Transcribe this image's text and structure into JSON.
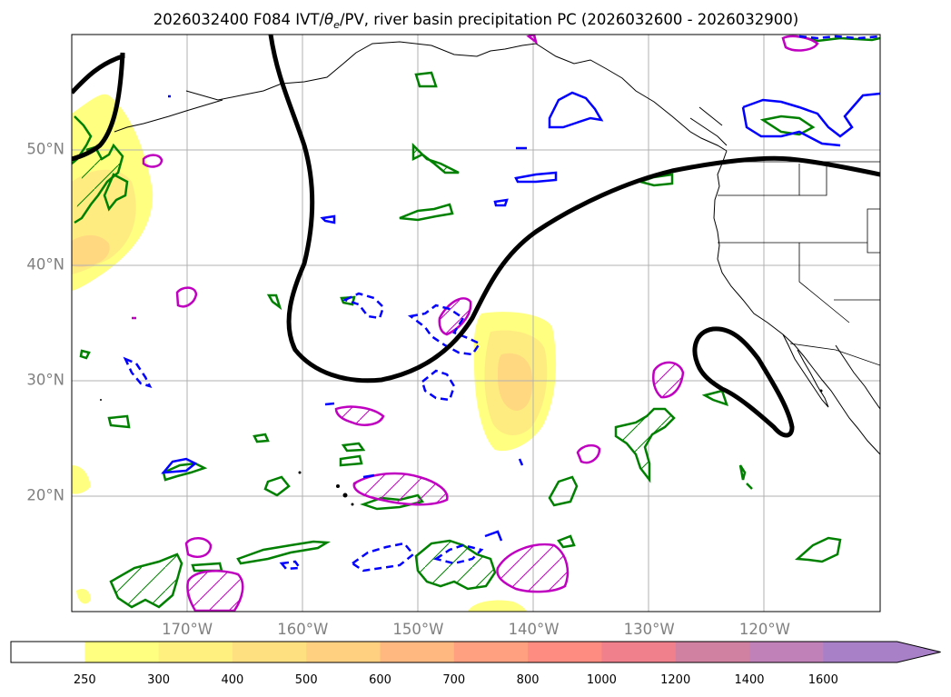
{
  "chart_data": {
    "type": "map",
    "title": "2026032400 F084 IVT/θe/PV, river basin precipitation PC (2026032600 - 2026032900)",
    "title_parts": {
      "prefix": "2026032400 F084 IVT/",
      "theta": "θ",
      "theta_sub": "e",
      "suffix": "/PV, river basin precipitation PC (2026032600 - 2026032900)"
    },
    "x_ticks": [
      "170°W",
      "160°W",
      "150°W",
      "140°W",
      "130°W",
      "120°W"
    ],
    "x_tick_values": [
      -170,
      -160,
      -150,
      -140,
      -130,
      -120
    ],
    "y_ticks": [
      "50°N",
      "40°N",
      "30°N",
      "20°N"
    ],
    "y_tick_values": [
      50,
      40,
      30,
      20
    ],
    "xlim": [
      -180,
      -110
    ],
    "ylim": [
      10,
      60
    ],
    "grid": true,
    "colorbar": {
      "labels": [
        "250",
        "300",
        "400",
        "500",
        "600",
        "700",
        "800",
        "1000",
        "1200",
        "1400",
        "1600"
      ],
      "levels": [
        250,
        300,
        400,
        500,
        600,
        700,
        800,
        1000,
        1200,
        1400,
        1600
      ],
      "colors": [
        "#ffffff",
        "#ffff80",
        "#fff080",
        "#ffe080",
        "#ffd080",
        "#ffb880",
        "#ffa080",
        "#ff8c80",
        "#f0808c",
        "#d080a0",
        "#c080b8",
        "#a880c8"
      ],
      "extend": "max"
    },
    "ivt_fill_colors": {
      "level_250": "#ffff80",
      "level_300": "#ffec80",
      "level_400": "#ffd880"
    },
    "contour_colors": {
      "pv_line": "#000000",
      "warm": "#c000c0",
      "cold": "#0000ff",
      "moist": "#008000"
    }
  }
}
